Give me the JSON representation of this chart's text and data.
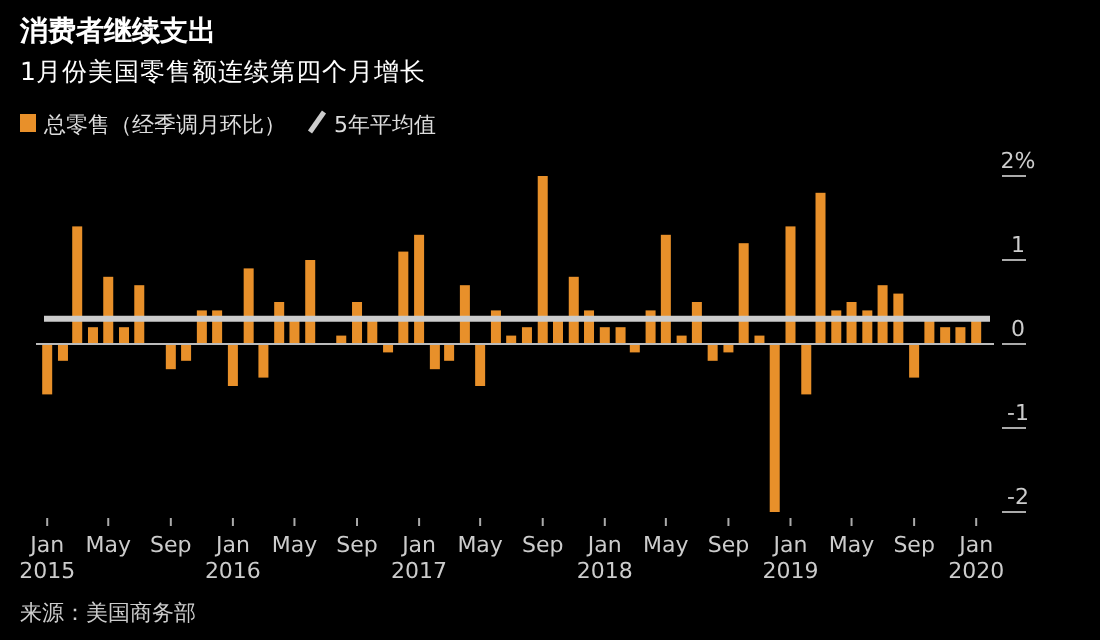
{
  "chart_data": {
    "type": "bar",
    "title": "消费者继续支出",
    "subtitle": "1月份美国零售额连续第四个月增长",
    "annotations": [
      "来源：美国商务部"
    ],
    "x": [
      "2015-01",
      "2015-02",
      "2015-03",
      "2015-04",
      "2015-05",
      "2015-06",
      "2015-07",
      "2015-08",
      "2015-09",
      "2015-10",
      "2015-11",
      "2015-12",
      "2016-01",
      "2016-02",
      "2016-03",
      "2016-04",
      "2016-05",
      "2016-06",
      "2016-07",
      "2016-08",
      "2016-09",
      "2016-10",
      "2016-11",
      "2016-12",
      "2017-01",
      "2017-02",
      "2017-03",
      "2017-04",
      "2017-05",
      "2017-06",
      "2017-07",
      "2017-08",
      "2017-09",
      "2017-10",
      "2017-11",
      "2017-12",
      "2018-01",
      "2018-02",
      "2018-03",
      "2018-04",
      "2018-05",
      "2018-06",
      "2018-07",
      "2018-08",
      "2018-09",
      "2018-10",
      "2018-11",
      "2018-12",
      "2019-01",
      "2019-02",
      "2019-03",
      "2019-04",
      "2019-05",
      "2019-06",
      "2019-07",
      "2019-08",
      "2019-09",
      "2019-10",
      "2019-11",
      "2019-12",
      "2020-01"
    ],
    "series": [
      {
        "name": "总零售（经季调月环比）",
        "color": "#e8902a",
        "values": [
          -0.6,
          -0.2,
          1.4,
          0.2,
          0.8,
          0.2,
          0.7,
          0,
          -0.3,
          -0.2,
          0.4,
          0.4,
          -0.5,
          0.9,
          -0.4,
          0.5,
          0.3,
          1.0,
          0,
          0.1,
          0.5,
          0.3,
          -0.1,
          1.1,
          1.3,
          -0.3,
          -0.2,
          0.7,
          -0.5,
          0.4,
          0.1,
          0.2,
          2.0,
          0.3,
          0.8,
          0.4,
          0.2,
          0.2,
          -0.1,
          0.4,
          1.3,
          0.1,
          0.5,
          -0.2,
          -0.1,
          1.2,
          0.1,
          -2.0,
          1.4,
          -0.6,
          1.8,
          0.4,
          0.5,
          0.4,
          0.7,
          0.6,
          -0.4,
          0.3,
          0.2,
          0.2,
          0.3
        ]
      }
    ],
    "ref_lines": [
      {
        "axis": "y",
        "value": 0.3,
        "label": "5年平均值",
        "color": "#cccccc"
      }
    ],
    "xlim": [
      "2014-12-10",
      "2020-02-05"
    ],
    "xticks": [
      {
        "value": "2015-01",
        "label": "Jan 2015"
      },
      {
        "value": "2015-05",
        "label": "May"
      },
      {
        "value": "2015-09",
        "label": "Sep"
      },
      {
        "value": "2016-01",
        "label": "Jan 2016"
      },
      {
        "value": "2016-05",
        "label": "May"
      },
      {
        "value": "2016-09",
        "label": "Sep"
      },
      {
        "value": "2017-01",
        "label": "Jan 2017"
      },
      {
        "value": "2017-05",
        "label": "May"
      },
      {
        "value": "2017-09",
        "label": "Sep"
      },
      {
        "value": "2018-01",
        "label": "Jan 2018"
      },
      {
        "value": "2018-05",
        "label": "May"
      },
      {
        "value": "2018-09",
        "label": "Sep"
      },
      {
        "value": "2019-01",
        "label": "Jan 2019"
      },
      {
        "value": "2019-05",
        "label": "May"
      },
      {
        "value": "2019-09",
        "label": "Sep"
      },
      {
        "value": "2020-01",
        "label": "Jan 2020"
      }
    ],
    "ylim": [
      -2,
      2
    ],
    "yticks": [
      -2,
      -1,
      0,
      1,
      {
        "value": 2,
        "label": "2%"
      }
    ],
    "legend": "top left"
  }
}
